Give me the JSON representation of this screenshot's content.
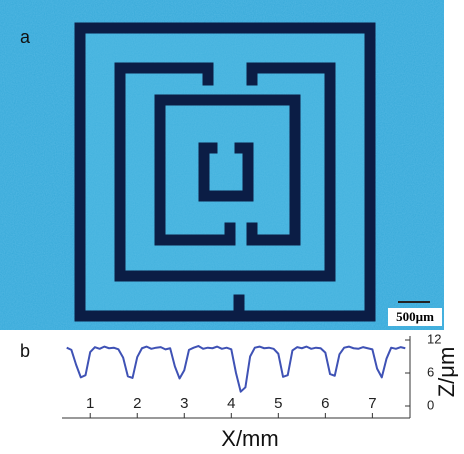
{
  "panel_a": {
    "label": "a",
    "scale_bar": "500µm"
  },
  "panel_b": {
    "label": "b"
  },
  "chart_data": {
    "type": "line",
    "xlabel": "X/mm",
    "ylabel": "Z/μm",
    "color": "#3f52b5",
    "xlim": [
      0.4,
      7.8
    ],
    "ylim": [
      0,
      12
    ],
    "xticks": [
      1,
      2,
      3,
      4,
      5,
      6,
      7
    ],
    "yticks": [
      0,
      6,
      12
    ],
    "x": [
      0.5,
      0.6,
      0.7,
      0.8,
      0.9,
      1.0,
      1.1,
      1.2,
      1.3,
      1.4,
      1.5,
      1.6,
      1.7,
      1.8,
      1.9,
      2.0,
      2.1,
      2.2,
      2.3,
      2.4,
      2.5,
      2.6,
      2.7,
      2.8,
      2.9,
      3.0,
      3.1,
      3.2,
      3.3,
      3.4,
      3.5,
      3.6,
      3.7,
      3.8,
      3.9,
      4.0,
      4.1,
      4.2,
      4.3,
      4.4,
      4.5,
      4.6,
      4.7,
      4.8,
      4.9,
      5.0,
      5.1,
      5.2,
      5.3,
      5.4,
      5.5,
      5.6,
      5.7,
      5.8,
      5.9,
      6.0,
      6.1,
      6.2,
      6.3,
      6.4,
      6.5,
      6.6,
      6.7,
      6.8,
      6.9,
      7.0,
      7.1,
      7.2,
      7.3,
      7.4,
      7.5,
      7.6,
      7.7
    ],
    "values": [
      10.6,
      10.2,
      7.5,
      5.2,
      5.6,
      9.8,
      10.7,
      10.4,
      10.8,
      10.5,
      10.6,
      10.3,
      8.8,
      5.4,
      5.1,
      8.9,
      10.5,
      10.8,
      10.4,
      10.6,
      10.7,
      10.3,
      10.5,
      7.2,
      5.0,
      6.5,
      10.2,
      10.6,
      10.9,
      10.4,
      10.6,
      10.5,
      10.8,
      10.4,
      10.6,
      10.3,
      6.0,
      2.6,
      3.4,
      9.0,
      10.6,
      10.8,
      10.5,
      10.6,
      10.4,
      9.5,
      5.3,
      5.6,
      10.1,
      10.7,
      10.5,
      10.8,
      10.4,
      10.6,
      10.5,
      9.7,
      5.8,
      5.5,
      9.4,
      10.6,
      10.8,
      10.5,
      10.4,
      10.7,
      10.5,
      10.3,
      6.8,
      5.2,
      8.6,
      10.6,
      10.4,
      10.7,
      10.5
    ]
  }
}
